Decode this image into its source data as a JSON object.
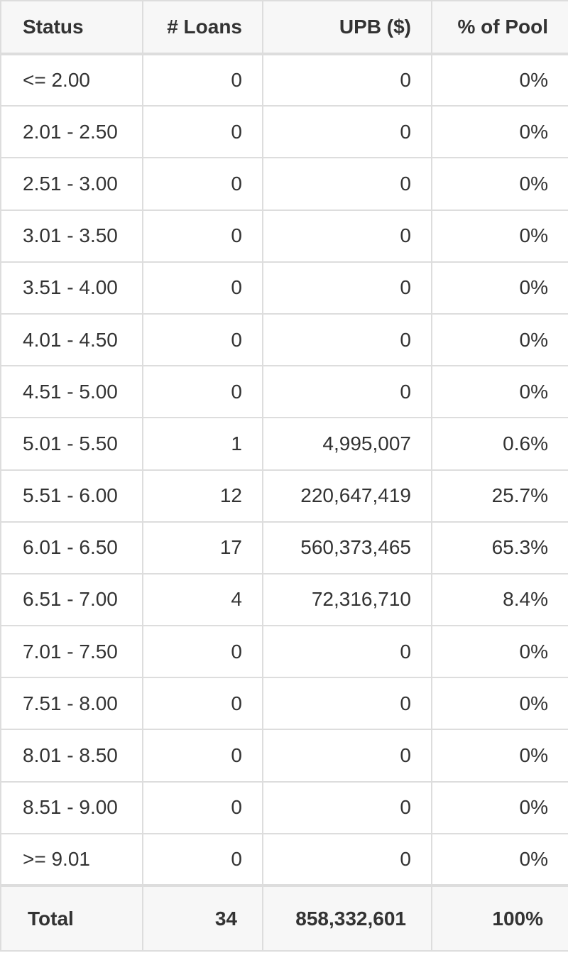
{
  "table": {
    "headers": [
      "Status",
      "# Loans",
      "UPB ($)",
      "% of Pool"
    ],
    "rows": [
      {
        "status": "<= 2.00",
        "loans": "0",
        "upb": "0",
        "pct": "0%"
      },
      {
        "status": "2.01 - 2.50",
        "loans": "0",
        "upb": "0",
        "pct": "0%"
      },
      {
        "status": "2.51 - 3.00",
        "loans": "0",
        "upb": "0",
        "pct": "0%"
      },
      {
        "status": "3.01 - 3.50",
        "loans": "0",
        "upb": "0",
        "pct": "0%"
      },
      {
        "status": "3.51 - 4.00",
        "loans": "0",
        "upb": "0",
        "pct": "0%"
      },
      {
        "status": "4.01 - 4.50",
        "loans": "0",
        "upb": "0",
        "pct": "0%"
      },
      {
        "status": "4.51 - 5.00",
        "loans": "0",
        "upb": "0",
        "pct": "0%"
      },
      {
        "status": "5.01 - 5.50",
        "loans": "1",
        "upb": "4,995,007",
        "pct": "0.6%"
      },
      {
        "status": "5.51 - 6.00",
        "loans": "12",
        "upb": "220,647,419",
        "pct": "25.7%"
      },
      {
        "status": "6.01 - 6.50",
        "loans": "17",
        "upb": "560,373,465",
        "pct": "65.3%"
      },
      {
        "status": "6.51 - 7.00",
        "loans": "4",
        "upb": "72,316,710",
        "pct": "8.4%"
      },
      {
        "status": "7.01 - 7.50",
        "loans": "0",
        "upb": "0",
        "pct": "0%"
      },
      {
        "status": "7.51 - 8.00",
        "loans": "0",
        "upb": "0",
        "pct": "0%"
      },
      {
        "status": "8.01 - 8.50",
        "loans": "0",
        "upb": "0",
        "pct": "0%"
      },
      {
        "status": "8.51 - 9.00",
        "loans": "0",
        "upb": "0",
        "pct": "0%"
      },
      {
        "status": ">= 9.01",
        "loans": "0",
        "upb": "0",
        "pct": "0%"
      }
    ],
    "total": {
      "label": "Total",
      "loans": "34",
      "upb": "858,332,601",
      "pct": "100%"
    }
  },
  "colors": {
    "border": "#dddddd",
    "header_bg": "#f7f7f7",
    "text": "#333333"
  }
}
